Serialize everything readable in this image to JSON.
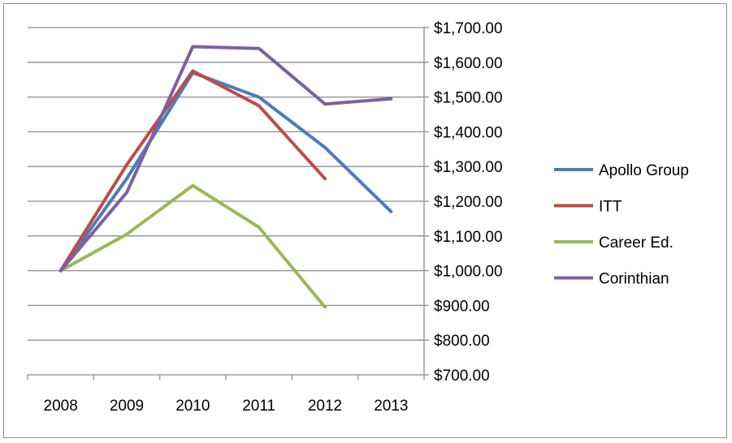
{
  "chart_data": {
    "type": "line",
    "categories": [
      "2008",
      "2009",
      "2010",
      "2011",
      "2012",
      "2013"
    ],
    "y_axis_side": "right",
    "ylim": [
      700,
      1700
    ],
    "y_ticks": [
      "$700.00",
      "$800.00",
      "$900.00",
      "$1,000.00",
      "$1,100.00",
      "$1,200.00",
      "$1,300.00",
      "$1,400.00",
      "$1,500.00",
      "$1,600.00",
      "$1,700.00"
    ],
    "grid": true,
    "legend_position": "right",
    "series": [
      {
        "name": "Apollo Group",
        "color": "#4a7ebb",
        "values": [
          1000,
          1265,
          1570,
          1500,
          1355,
          1170
        ]
      },
      {
        "name": "ITT",
        "color": "#be4b48",
        "values": [
          1000,
          1305,
          1575,
          1475,
          1265,
          null
        ]
      },
      {
        "name": "Career Ed.",
        "color": "#98b954",
        "values": [
          1000,
          1105,
          1245,
          1125,
          895,
          null
        ]
      },
      {
        "name": "Corinthian",
        "color": "#7d60a0",
        "values": [
          1000,
          1225,
          1645,
          1640,
          1480,
          1495
        ]
      }
    ]
  }
}
